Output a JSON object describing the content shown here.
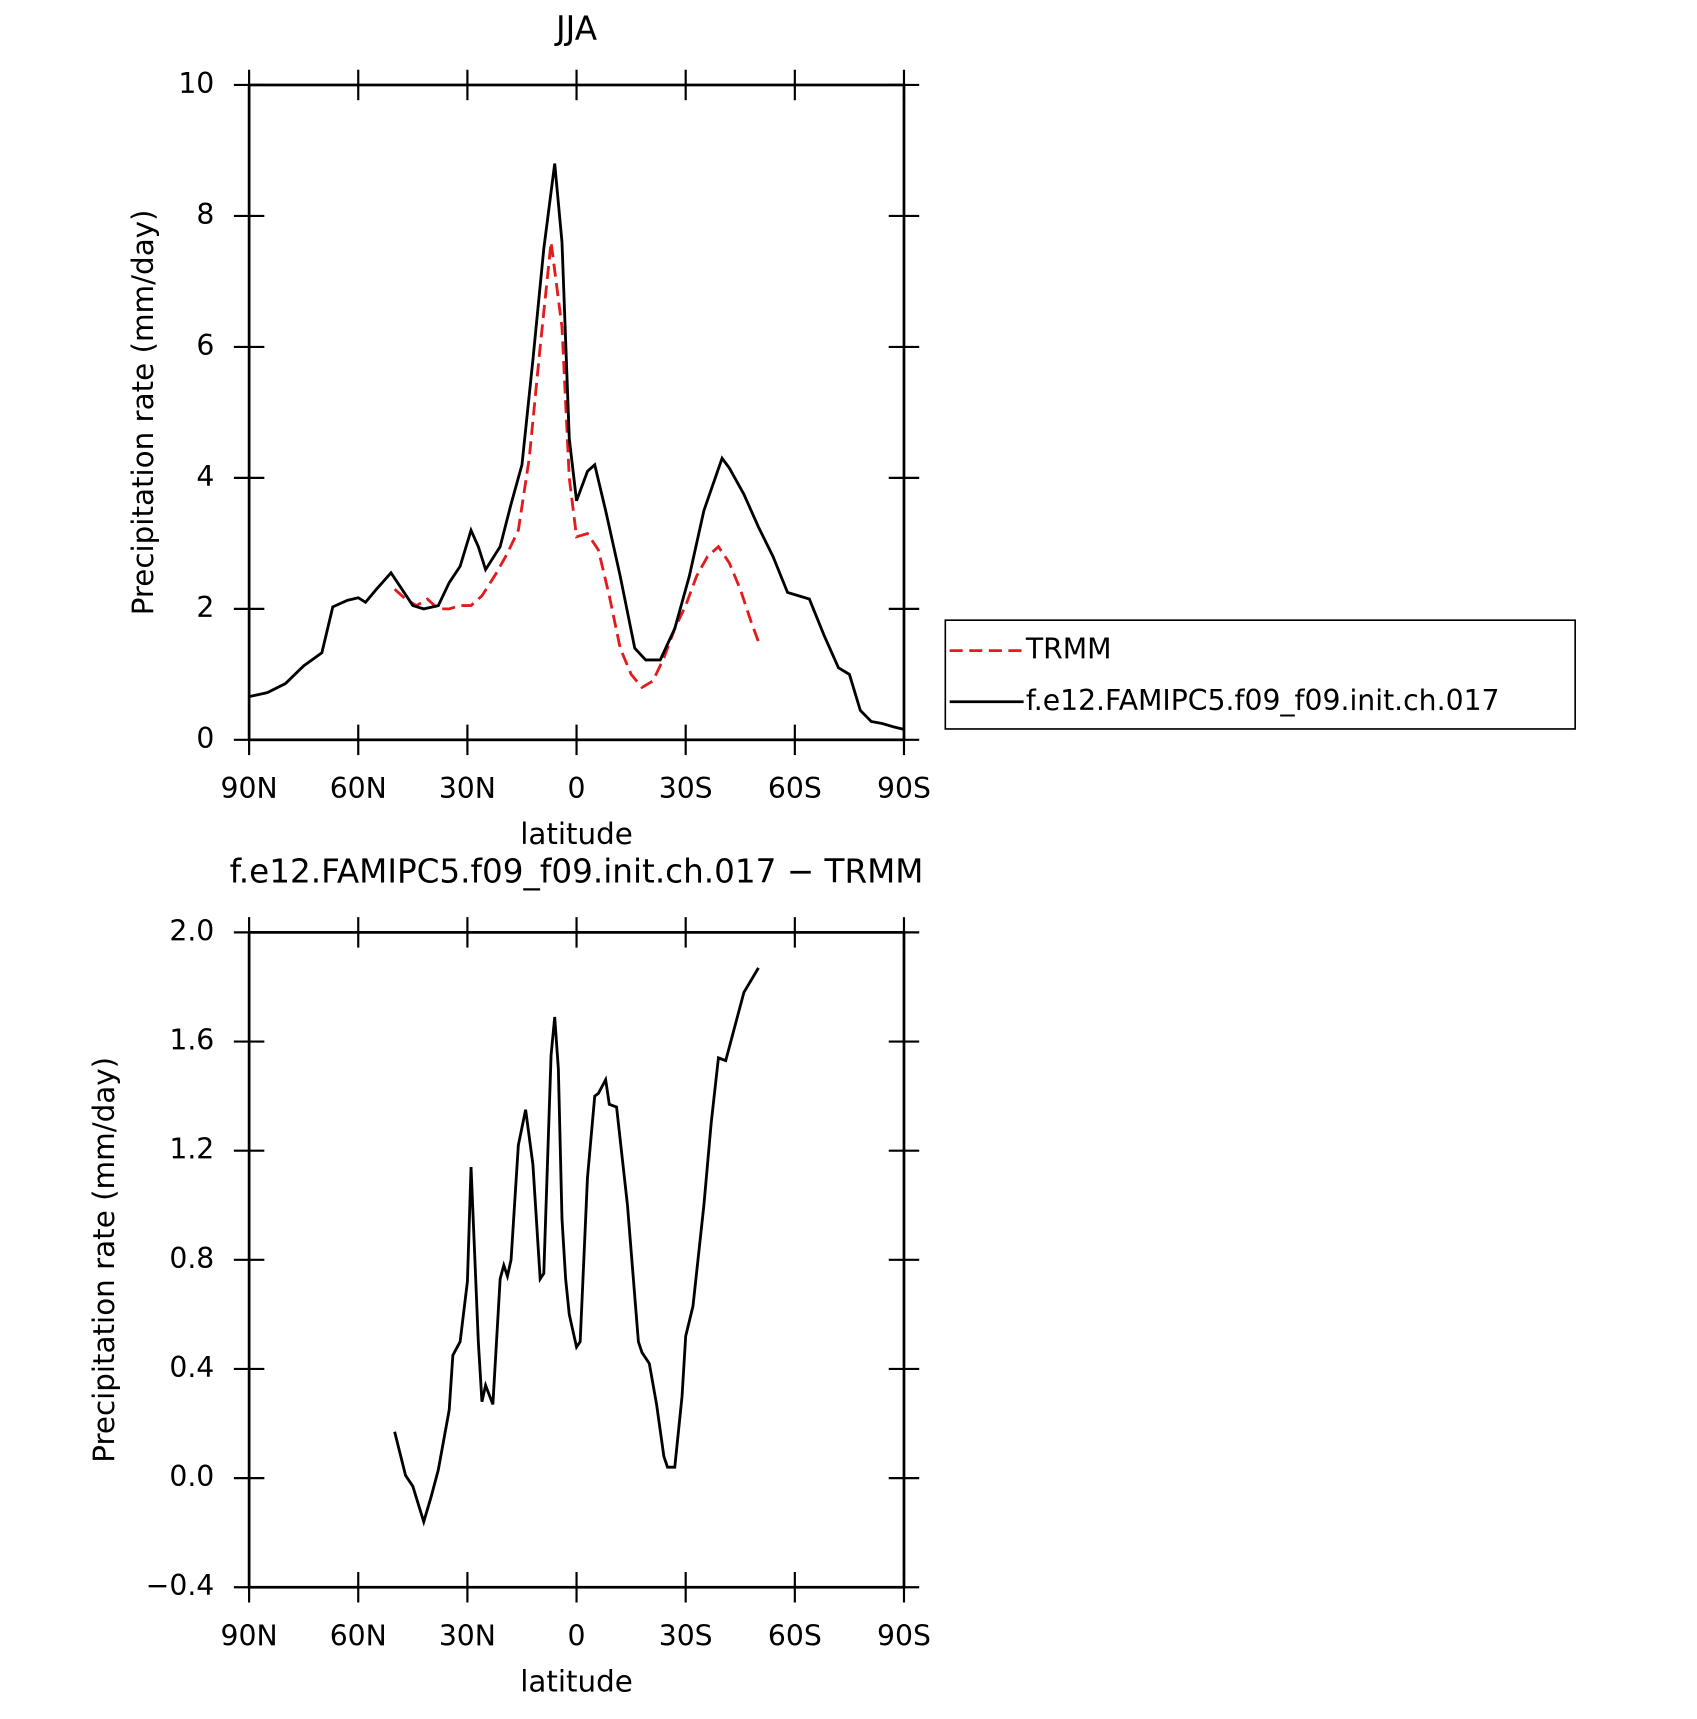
{
  "chart_data": [
    {
      "type": "line",
      "title": "JJA",
      "xlabel": "latitude",
      "ylabel": "Precipitation rate (mm/day)",
      "xlim": [
        90,
        -90
      ],
      "xticks": [
        {
          "value": 90,
          "label": "90N"
        },
        {
          "value": 60,
          "label": "60N"
        },
        {
          "value": 30,
          "label": "30N"
        },
        0,
        {
          "value": -30,
          "label": "30S"
        },
        {
          "value": -60,
          "label": "60S"
        },
        {
          "value": -90,
          "label": "90S"
        }
      ],
      "ylim": [
        0,
        10
      ],
      "yticks": [
        0,
        2,
        4,
        6,
        8,
        10
      ],
      "series": [
        {
          "name": "TRMM",
          "color": "#e41a1c",
          "line_style": "dashed",
          "x": [
            50,
            47,
            44,
            41,
            38,
            35,
            32,
            29,
            26,
            22,
            19,
            16,
            13,
            10,
            7,
            4,
            2,
            0,
            -3,
            -6,
            -9,
            -12,
            -15,
            -18,
            -21,
            -24,
            -27,
            -30,
            -33,
            -36,
            -39,
            -42,
            -45,
            -48,
            -50
          ],
          "values": [
            2.3,
            2.15,
            2.05,
            2.15,
            2.0,
            2.0,
            2.05,
            2.05,
            2.2,
            2.55,
            2.85,
            3.2,
            4.3,
            6.0,
            7.6,
            6.3,
            4.0,
            3.1,
            3.15,
            2.9,
            2.2,
            1.4,
            1.0,
            0.8,
            0.9,
            1.25,
            1.7,
            2.05,
            2.5,
            2.8,
            2.95,
            2.7,
            2.3,
            1.8,
            1.5
          ]
        },
        {
          "name": "f.e12.FAMIPC5.f09_f09.init.ch.017",
          "color": "#000000",
          "line_style": "solid",
          "x": [
            90,
            85,
            80,
            75,
            70,
            67,
            63,
            60,
            58,
            55,
            51,
            48,
            45,
            42,
            38,
            35,
            32,
            29,
            27,
            25,
            21,
            18,
            15,
            12,
            9,
            6,
            4,
            2,
            0,
            -3,
            -5,
            -8,
            -12,
            -16,
            -19,
            -23,
            -27,
            -31,
            -35,
            -40,
            -42,
            -46,
            -50,
            -54,
            -58,
            -61,
            -64,
            -68,
            -72,
            -75,
            -78,
            -81,
            -84,
            -87,
            -90
          ],
          "values": [
            0.66,
            0.72,
            0.86,
            1.13,
            1.33,
            2.03,
            2.13,
            2.17,
            2.1,
            2.3,
            2.55,
            2.3,
            2.05,
            2.0,
            2.05,
            2.4,
            2.65,
            3.2,
            2.95,
            2.6,
            2.95,
            3.6,
            4.2,
            5.8,
            7.5,
            8.8,
            7.6,
            4.6,
            3.65,
            4.1,
            4.2,
            3.5,
            2.5,
            1.4,
            1.22,
            1.22,
            1.7,
            2.5,
            3.5,
            4.3,
            4.15,
            3.75,
            3.25,
            2.8,
            2.25,
            2.2,
            2.15,
            1.6,
            1.1,
            1.0,
            0.45,
            0.28,
            0.25,
            0.2,
            0.16
          ]
        }
      ]
    },
    {
      "type": "line",
      "title": "f.e12.FAMIPC5.f09_f09.init.ch.017 − TRMM",
      "xlabel": "latitude",
      "ylabel": "Precipitation rate (mm/day)",
      "xlim": [
        90,
        -90
      ],
      "xticks": [
        {
          "value": 90,
          "label": "90N"
        },
        {
          "value": 60,
          "label": "60N"
        },
        {
          "value": 30,
          "label": "30N"
        },
        0,
        {
          "value": -30,
          "label": "30S"
        },
        {
          "value": -60,
          "label": "60S"
        },
        {
          "value": -90,
          "label": "90S"
        }
      ],
      "ylim": [
        -0.4,
        2.0
      ],
      "yticks": [
        {
          "value": -0.4,
          "label": "−0.4"
        },
        {
          "value": 0,
          "label": "0.0"
        },
        0.4,
        0.8,
        1.2,
        1.6,
        {
          "value": 2,
          "label": "2.0"
        }
      ],
      "series": [
        {
          "color": "#000000",
          "line_style": "solid",
          "x": [
            50,
            47,
            45,
            42,
            40,
            38,
            35,
            34,
            32,
            30,
            29,
            27,
            26,
            25,
            23,
            21,
            20,
            19,
            18,
            16,
            14,
            12,
            10,
            9,
            7,
            6,
            5,
            4,
            3,
            2,
            0,
            -1,
            -3,
            -5,
            -6,
            -8,
            -9,
            -11,
            -14,
            -17,
            -18,
            -20,
            -22,
            -24,
            -25,
            -27,
            -29,
            -30,
            -32,
            -35,
            -37,
            -39,
            -41,
            -43,
            -46,
            -50
          ],
          "values": [
            0.17,
            0.01,
            -0.03,
            -0.16,
            -0.07,
            0.03,
            0.25,
            0.45,
            0.5,
            0.72,
            1.14,
            0.5,
            0.28,
            0.34,
            0.27,
            0.73,
            0.78,
            0.74,
            0.8,
            1.22,
            1.35,
            1.15,
            0.73,
            0.75,
            1.55,
            1.69,
            1.5,
            0.95,
            0.73,
            0.6,
            0.48,
            0.5,
            1.1,
            1.4,
            1.41,
            1.46,
            1.37,
            1.36,
            1.0,
            0.5,
            0.46,
            0.42,
            0.27,
            0.08,
            0.04,
            0.04,
            0.3,
            0.52,
            0.63,
            1.0,
            1.3,
            1.54,
            1.53,
            1.63,
            1.78,
            1.87
          ]
        }
      ]
    }
  ]
}
